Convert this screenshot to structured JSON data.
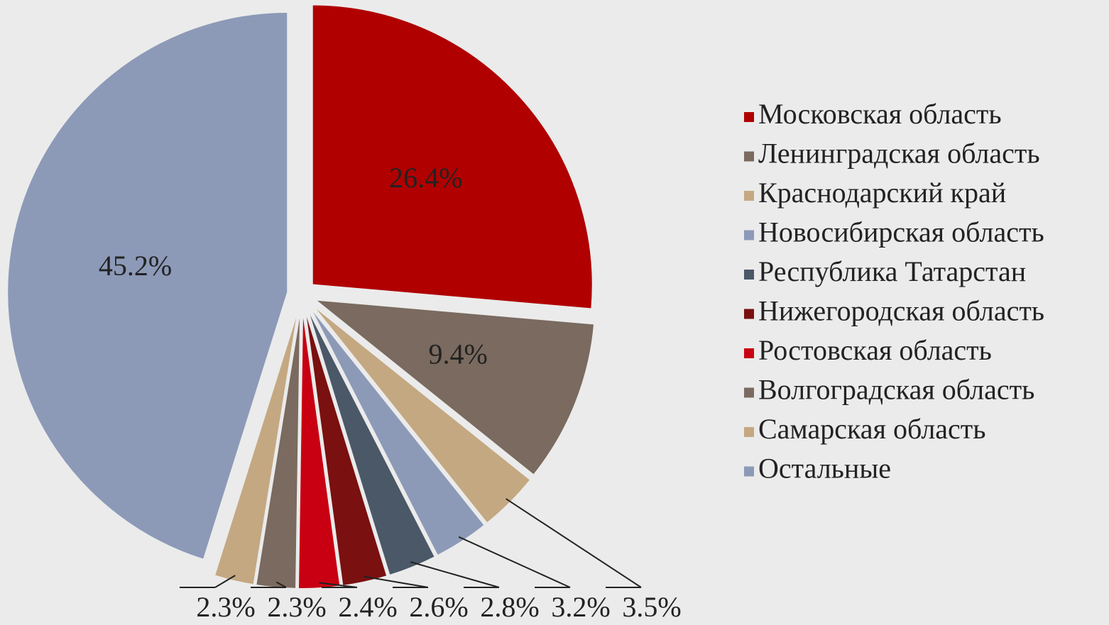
{
  "chart_data": {
    "type": "pie",
    "categories": [
      "Московская область",
      "Ленинградская область",
      "Краснодарский край",
      "Новосибирская область",
      "Республика Татарстан",
      "Нижегородская область",
      "Ростовская область",
      "Волгоградская область",
      "Самарская область",
      "Остальные"
    ],
    "values": [
      26.4,
      9.4,
      3.5,
      3.2,
      2.8,
      2.6,
      2.4,
      2.3,
      2.3,
      45.2
    ],
    "value_labels": [
      "26.4%",
      "9.4%",
      "3.5%",
      "3.2%",
      "2.8%",
      "2.6%",
      "2.4%",
      "2.3%",
      "2.3%",
      "45.2%"
    ],
    "colors": [
      "#b00000",
      "#7a6a5f",
      "#c4a882",
      "#8c9ab8",
      "#4a5868",
      "#7a1010",
      "#c80012",
      "#7a6a5f",
      "#c4a882",
      "#8c9ab8"
    ],
    "legend": "right"
  }
}
